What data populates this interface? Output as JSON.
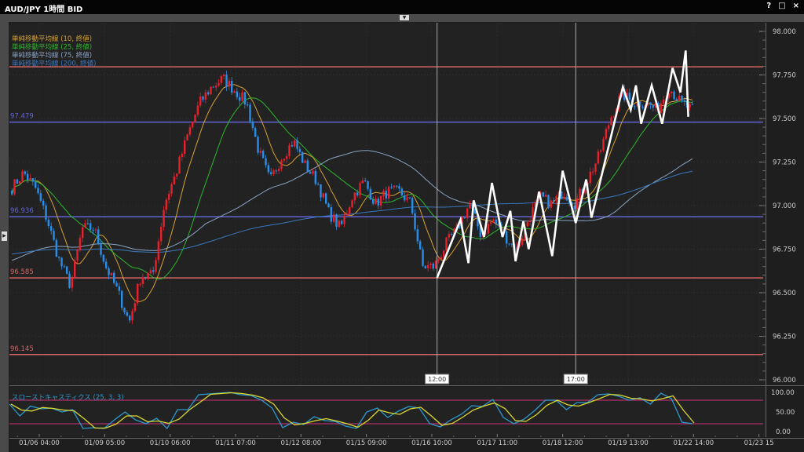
{
  "window": {
    "title": "AUD/JPY 1時間 BID",
    "help_icon": "?",
    "maximize_icon": "□",
    "close_icon": "×"
  },
  "colors": {
    "bull": "#e8202c",
    "bear": "#2a8ee8",
    "ma10": "#d8a030",
    "ma25": "#2cb82c",
    "ma75": "#8aa4c4",
    "ma200": "#3a78c0",
    "stoch_k": "#2a9ad0",
    "stoch_d": "#d8d830",
    "level_red": "#d86464",
    "level_blue": "#6464d8",
    "zigzag": "#ffffff",
    "band": "#b0306a"
  },
  "legend": [
    {
      "label": "単純移動平均線 (10, 終値)",
      "color": "#d8a030"
    },
    {
      "label": "単純移動平均線 (25, 終値)",
      "color": "#2cb82c"
    },
    {
      "label": "単純移動平均線 (75, 終値)",
      "color": "#8aa4c4"
    },
    {
      "label": "単純移動平均線 (200, 終値)",
      "color": "#3a78c0"
    }
  ],
  "chart_data": [
    {
      "type": "candlestick",
      "title": "AUD/JPY 1時間 BID",
      "ylim": [
        96.0,
        98.0
      ],
      "y_ticks": [
        "98.000",
        "97.750",
        "97.500",
        "97.250",
        "97.000",
        "96.750",
        "96.500",
        "96.250",
        "96.000"
      ],
      "x_ticks": [
        "01/06 04:00",
        "01/09 05:00",
        "01/10 06:00",
        "01/11 07:00",
        "01/12 08:00",
        "01/15 09:00",
        "01/16 10:00",
        "01/17 11:00",
        "01/18 12:00",
        "01/19 13:00",
        "01/22 14:00",
        "01/23 15"
      ],
      "grid": true,
      "close_path": [
        97.1,
        97.19,
        97.1,
        96.92,
        96.69,
        96.54,
        96.87,
        96.87,
        96.65,
        96.51,
        96.33,
        96.6,
        96.6,
        97.01,
        97.19,
        97.41,
        97.59,
        97.68,
        97.73,
        97.66,
        97.59,
        97.32,
        97.14,
        97.28,
        97.37,
        97.23,
        97.14,
        96.96,
        96.87,
        97.05,
        97.14,
        97.01,
        97.08,
        97.08,
        97.01,
        96.65,
        96.65,
        96.78,
        96.87,
        97.01,
        96.83,
        96.92,
        96.83,
        96.74,
        96.92,
        97.05,
        97.01,
        97.08,
        97.01,
        97.14,
        97.28,
        97.5,
        97.64,
        97.59,
        97.59,
        97.55,
        97.68,
        97.59,
        97.55
      ],
      "levels": [
        {
          "price": 97.797,
          "label": "",
          "color": "#d86464"
        },
        {
          "price": 97.479,
          "label": "97.479",
          "color": "#6464d8"
        },
        {
          "price": 96.936,
          "label": "96.936",
          "color": "#6464d8"
        },
        {
          "price": 96.585,
          "label": "96.585",
          "color": "#d86464"
        },
        {
          "price": 96.145,
          "label": "96.145",
          "color": "#d86464"
        }
      ],
      "markers": [
        {
          "time": "01/16 12:00",
          "label": "12:00"
        },
        {
          "time": "01/18 17:00",
          "label": "17:00"
        }
      ],
      "zigzag": [
        {
          "time": "01/16 12:00",
          "price": 96.585
        },
        {
          "time": "01/16 21:00",
          "price": 96.92
        },
        {
          "time": "01/17 00:00",
          "price": 96.67
        },
        {
          "time": "01/17 02:00",
          "price": 97.03
        },
        {
          "time": "01/17 06:00",
          "price": 96.82
        },
        {
          "time": "01/17 09:00",
          "price": 97.13
        },
        {
          "time": "01/17 13:00",
          "price": 96.82
        },
        {
          "time": "01/17 16:00",
          "price": 96.97
        },
        {
          "time": "01/17 18:00",
          "price": 96.68
        },
        {
          "time": "01/17 21:00",
          "price": 96.91
        },
        {
          "time": "01/17 23:00",
          "price": 96.75
        },
        {
          "time": "01/18 03:00",
          "price": 97.08
        },
        {
          "time": "01/18 08:00",
          "price": 96.71
        },
        {
          "time": "01/18 12:00",
          "price": 97.2
        },
        {
          "time": "01/18 17:00",
          "price": 96.9
        },
        {
          "time": "01/18 21:00",
          "price": 97.15
        },
        {
          "time": "01/18 23:00",
          "price": 96.93
        },
        {
          "time": "01/19 11:00",
          "price": 97.68
        },
        {
          "time": "01/19 14:00",
          "price": 97.55
        },
        {
          "time": "01/19 16:00",
          "price": 97.69
        },
        {
          "time": "01/19 18:00",
          "price": 97.47
        },
        {
          "time": "01/19 22:00",
          "price": 97.69
        },
        {
          "time": "01/20 02:00",
          "price": 97.47
        },
        {
          "time": "01/20 06:00",
          "price": 97.79
        },
        {
          "time": "01/22 09:00",
          "price": 97.65
        },
        {
          "time": "01/22 11:00",
          "price": 97.89
        },
        {
          "time": "01/22 12:00",
          "price": 97.51
        }
      ]
    },
    {
      "type": "line",
      "title": "スローストキャスティクス (25, 3, 3)",
      "ylim": [
        0,
        100
      ],
      "y_ticks": [
        "100.00",
        "50.00",
        "0.00"
      ],
      "bands": [
        20,
        80
      ],
      "k_values": [
        70,
        40,
        65,
        58,
        60,
        50,
        56,
        8,
        10,
        8,
        30,
        50,
        30,
        20,
        34,
        8,
        56,
        56,
        94,
        96,
        98,
        100,
        94,
        92,
        80,
        60,
        10,
        24,
        18,
        38,
        28,
        26,
        14,
        8,
        50,
        60,
        36,
        52,
        64,
        60,
        20,
        12,
        30,
        44,
        66,
        64,
        82,
        36,
        20,
        32,
        54,
        80,
        80,
        56,
        74,
        74,
        94,
        96,
        90,
        80,
        86,
        70,
        98,
        84,
        24,
        20
      ]
    }
  ]
}
